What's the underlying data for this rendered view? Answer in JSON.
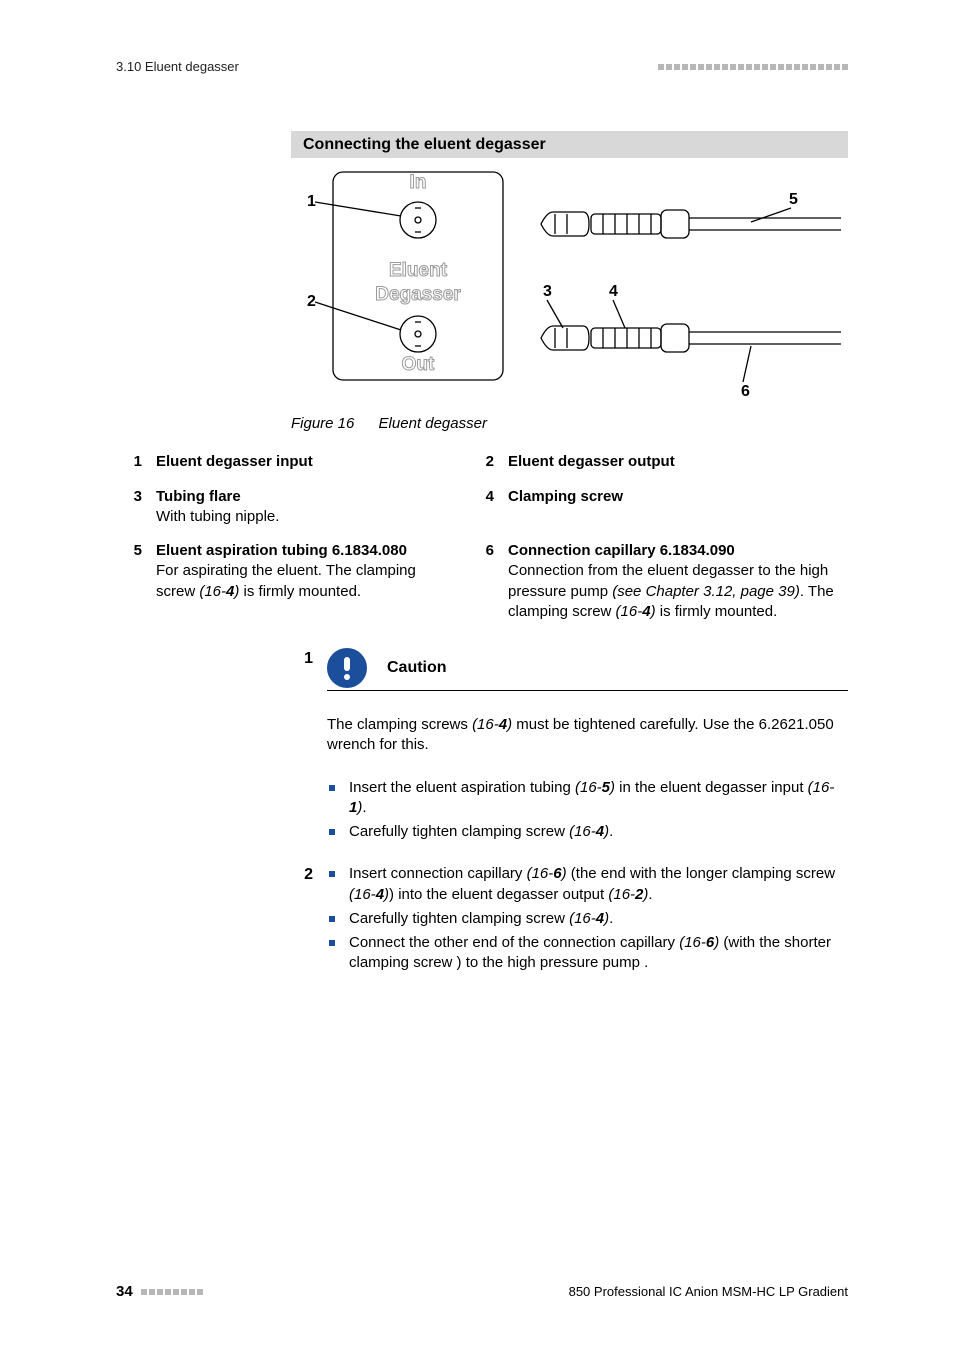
{
  "header": {
    "section": "3.10 Eluent degasser",
    "deco_count": 24
  },
  "heading": "Connecting the eluent degasser",
  "diagram": {
    "labels": {
      "in": "In",
      "title1": "Eluent",
      "title2": "Degasser",
      "out": "Out"
    },
    "callouts": {
      "1": "1",
      "2": "2",
      "3": "3",
      "4": "4",
      "5": "5",
      "6": "6"
    }
  },
  "figure": {
    "label": "Figure 16",
    "title": "Eluent degasser"
  },
  "legend": {
    "1": {
      "title": "Eluent degasser input",
      "desc_html": ""
    },
    "2": {
      "title": "Eluent degasser output",
      "desc_html": ""
    },
    "3": {
      "title": "Tubing flare",
      "desc_html": "With tubing nipple."
    },
    "4": {
      "title": "Clamping screw",
      "desc_html": ""
    },
    "5": {
      "title": "Eluent aspiration tubing 6.1834.080",
      "desc_html": "For aspirating the eluent. The clamping screw <span class='it'>(16-</span><span class='bi'>4</span><span class='it'>)</span> is firmly mounted."
    },
    "6": {
      "title": "Connection capillary 6.1834.090",
      "desc_html": "Connection from the eluent degasser to the high pressure pump <span class='it'>(see Chapter 3.12, page 39)</span>. The clamping screw <span class='it'>(16-</span><span class='bi'>4</span><span class='it'>)</span> is firmly mounted."
    }
  },
  "caution": {
    "label": "Caution",
    "text_html": "The clamping screws <span class='it'>(16-</span><span class='bi'>4</span><span class='it'>)</span> must be tightened carefully. Use the 6.2621.050 wrench for this."
  },
  "step1": {
    "num": "1",
    "bullets": [
      "Insert the eluent aspiration tubing <span class='it'>(16-</span><span class='bi'>5</span><span class='it'>)</span> in the eluent degasser input <span class='it'>(16-</span><span class='bi'>1</span><span class='it'>)</span>.",
      "Carefully tighten clamping screw <span class='it'>(16-</span><span class='bi'>4</span><span class='it'>)</span>."
    ]
  },
  "step2": {
    "num": "2",
    "bullets": [
      "Insert connection capillary <span class='it'>(16-</span><span class='bi'>6</span><span class='it'>)</span> (the end with the longer clamping screw <span class='it'>(16-</span><span class='bi'>4</span><span class='it'>)</span>) into the eluent degasser output <span class='it'>(16-</span><span class='bi'>2</span><span class='it'>)</span>.",
      "Carefully tighten clamping screw <span class='it'>(16-</span><span class='bi'>4</span><span class='it'>)</span>.",
      "Connect the other end of the connection capillary <span class='it'>(16-</span><span class='bi'>6</span><span class='it'>)</span> (with the shorter clamping screw ) to the high pressure pump ."
    ]
  },
  "footer": {
    "page": "34",
    "deco_count": 8,
    "doc": "850 Professional IC Anion MSM-HC LP Gradient"
  }
}
